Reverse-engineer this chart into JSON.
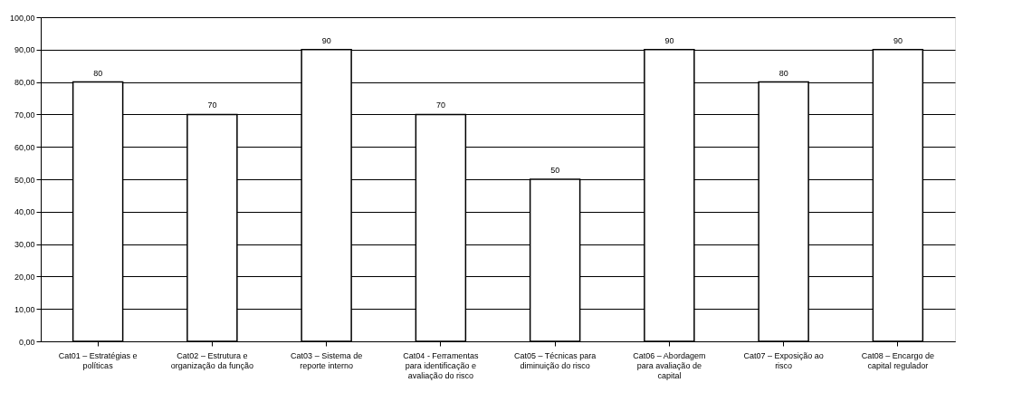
{
  "chart_data": {
    "type": "bar",
    "categories": [
      "Cat01 – Estratégias e políticas",
      "Cat02 – Estrutura e organização da função",
      "Cat03 – Sistema de reporte interno",
      "Cat04 - Ferramentas para identificação e avaliação do risco",
      "Cat05 – Técnicas para diminuição do risco",
      "Cat06 – Abordagem para avaliação de capital",
      "Cat07 – Exposição ao risco",
      "Cat08 – Encargo de capital regulador"
    ],
    "values": [
      80,
      70,
      90,
      70,
      50,
      90,
      80,
      90
    ],
    "color": "#ffffff",
    "data_labels": true,
    "ylim": [
      0,
      100
    ],
    "yticks": [
      {
        "value": 0,
        "label": "0,00"
      },
      {
        "value": 10,
        "label": "10,00"
      },
      {
        "value": 20,
        "label": "20,00"
      },
      {
        "value": 30,
        "label": "30,00"
      },
      {
        "value": 40,
        "label": "40,00"
      },
      {
        "value": 50,
        "label": "50,00"
      },
      {
        "value": 60,
        "label": "60,00"
      },
      {
        "value": 70,
        "label": "70,00"
      },
      {
        "value": 80,
        "label": "80,00"
      },
      {
        "value": 90,
        "label": "90,00"
      },
      {
        "value": 100,
        "label": "100,00"
      }
    ],
    "grid": "y"
  }
}
